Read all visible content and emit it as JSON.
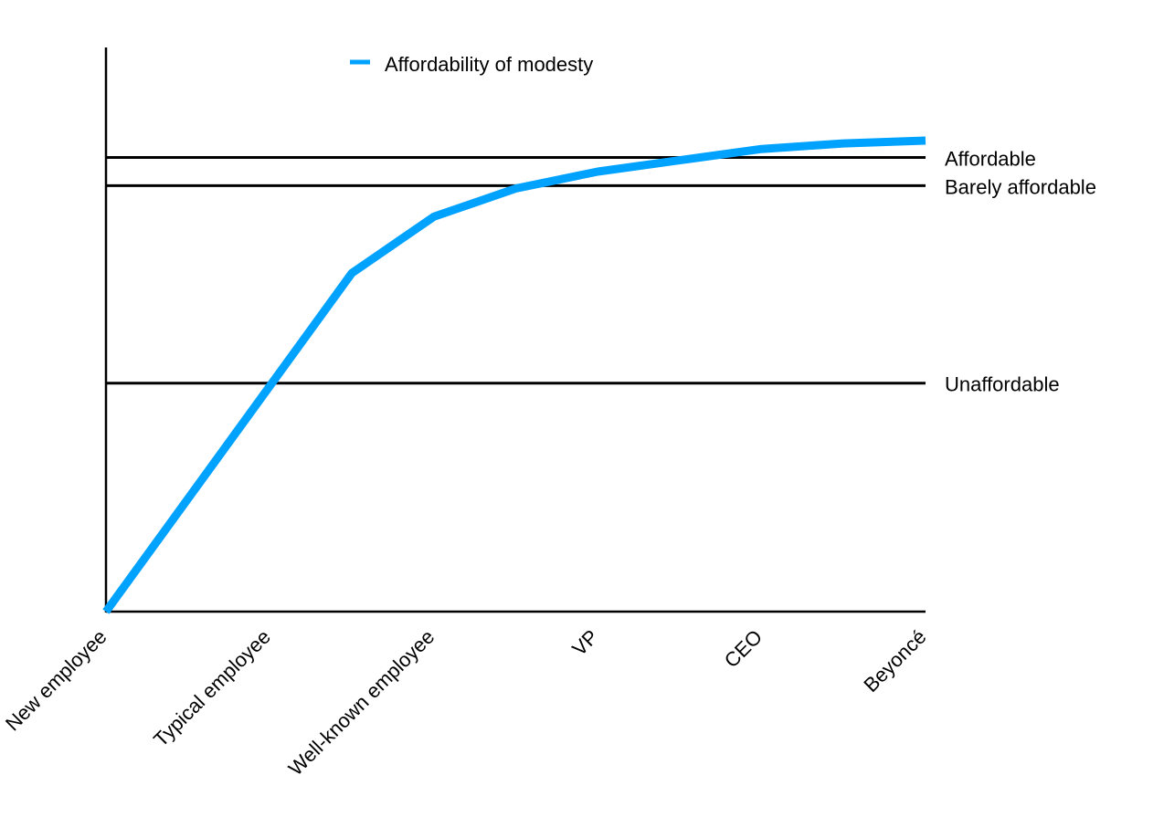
{
  "chart_data": {
    "type": "line",
    "title": "",
    "xlabel": "",
    "ylabel": "",
    "categories": [
      "New employee",
      "Typical employee",
      "Well-known employee",
      "VP",
      "CEO",
      "Beyoncé"
    ],
    "x": [
      0,
      1.5,
      2,
      2.5,
      3,
      3.5,
      4,
      4.5,
      5
    ],
    "ylim": [
      0,
      100
    ],
    "grid": false,
    "legend_position": "top-center",
    "series": [
      {
        "name": "Affordability of modesty",
        "color": "#00a2ff",
        "values": [
          0,
          60,
          70,
          75,
          78,
          80,
          82,
          83,
          83.5
        ]
      }
    ],
    "reference_lines": [
      {
        "label": "Affordable",
        "value": 80.5
      },
      {
        "label": "Barely affordable",
        "value": 75.5
      },
      {
        "label": "Unaffordable",
        "value": 40.5
      }
    ]
  }
}
